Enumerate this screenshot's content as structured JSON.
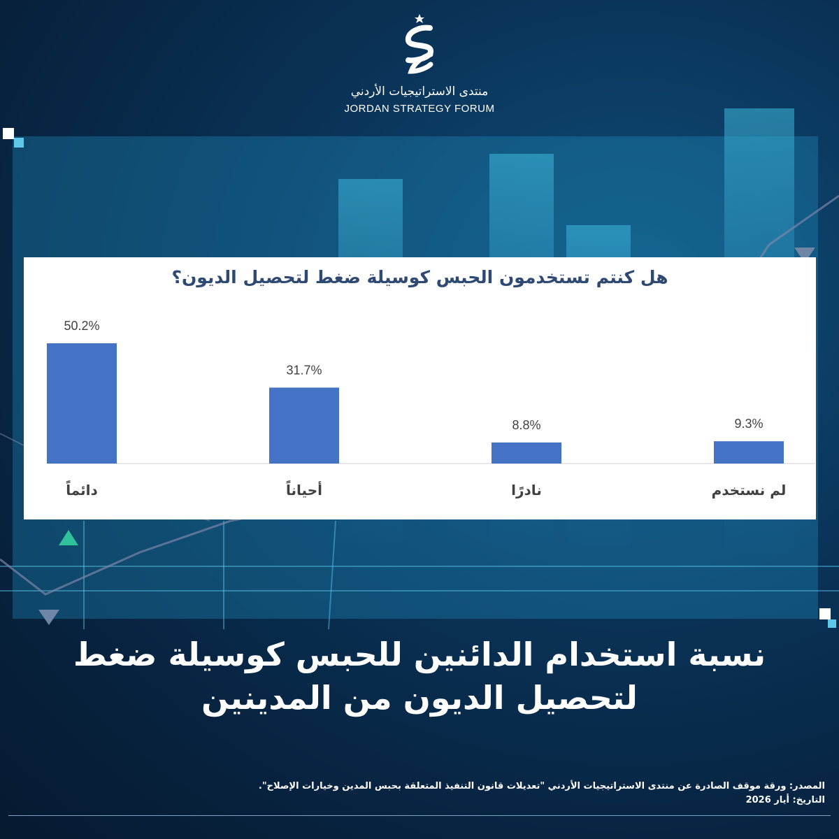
{
  "brand": {
    "name_ar": "منتدى الاستراتيجيات الأردني",
    "name_en": "JORDAN STRATEGY FORUM"
  },
  "colors": {
    "bar": "#4472c4",
    "title": "#2e4a72",
    "background": "#0a3358"
  },
  "chart_data": {
    "type": "bar",
    "title": "هل كنتم تستخدمون الحبس كوسيلة ضغط لتحصيل الديون؟",
    "categories": [
      "دائماً",
      "أحياناً",
      "نادرًا",
      "لم نستخدم"
    ],
    "values": [
      50.2,
      31.7,
      8.8,
      9.3
    ],
    "value_labels": [
      "50.2%",
      "31.7%",
      "8.8%",
      "9.3%"
    ],
    "ylim": [
      0,
      50.2
    ],
    "grid": false,
    "legend": "none"
  },
  "headline": "نسبة استخدام الدائنين للحبس كوسيلة ضغط لتحصيل الديون من المدينين",
  "footer": {
    "source": "المصدر: ورقة موقف الصادرة عن منتدى الاستراتيجيات الأردني \"تعديلات قانون التنفيذ المتعلقة بحبس المدين وخيارات الإصلاح\".",
    "date": "التاريخ: أيار 2026"
  }
}
